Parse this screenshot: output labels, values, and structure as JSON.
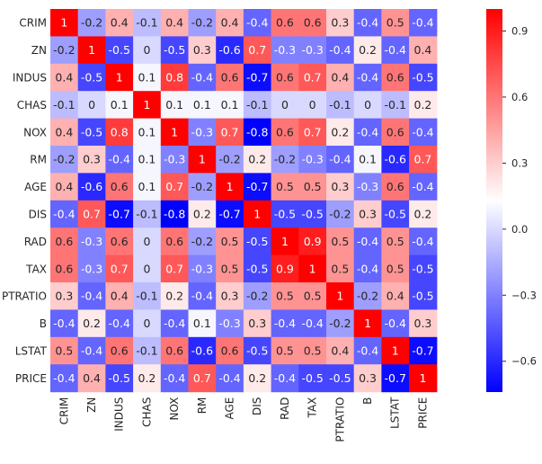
{
  "chart_data": {
    "type": "heatmap",
    "title": "",
    "xlabel": "",
    "ylabel": "",
    "labels": [
      "CRIM",
      "ZN",
      "INDUS",
      "CHAS",
      "NOX",
      "RM",
      "AGE",
      "DIS",
      "RAD",
      "TAX",
      "PTRATIO",
      "B",
      "LSTAT",
      "PRICE"
    ],
    "values": [
      [
        1,
        -0.2,
        0.4,
        -0.1,
        0.4,
        -0.2,
        0.4,
        -0.4,
        0.6,
        0.6,
        0.3,
        -0.4,
        0.5,
        -0.4
      ],
      [
        -0.2,
        1,
        -0.5,
        0,
        -0.5,
        0.3,
        -0.6,
        0.7,
        -0.3,
        -0.3,
        -0.4,
        0.2,
        -0.4,
        0.4
      ],
      [
        0.4,
        -0.5,
        1,
        0.1,
        0.8,
        -0.4,
        0.6,
        -0.7,
        0.6,
        0.7,
        0.4,
        -0.4,
        0.6,
        -0.5
      ],
      [
        -0.1,
        0,
        0.1,
        1,
        0.1,
        0.1,
        0.1,
        -0.1,
        0,
        0,
        -0.1,
        0,
        -0.1,
        0.2
      ],
      [
        0.4,
        -0.5,
        0.8,
        0.1,
        1,
        -0.3,
        0.7,
        -0.8,
        0.6,
        0.7,
        0.2,
        -0.4,
        0.6,
        -0.4
      ],
      [
        -0.2,
        0.3,
        -0.4,
        0.1,
        -0.3,
        1,
        -0.2,
        0.2,
        -0.2,
        -0.3,
        -0.4,
        0.1,
        -0.6,
        0.7
      ],
      [
        0.4,
        -0.6,
        0.6,
        0.1,
        0.7,
        -0.2,
        1,
        -0.7,
        0.5,
        0.5,
        0.3,
        -0.3,
        0.6,
        -0.4
      ],
      [
        -0.4,
        0.7,
        -0.7,
        -0.1,
        -0.8,
        0.2,
        -0.7,
        1,
        -0.5,
        -0.5,
        -0.2,
        0.3,
        -0.5,
        0.2
      ],
      [
        0.6,
        -0.3,
        0.6,
        0,
        0.6,
        -0.2,
        0.5,
        -0.5,
        1,
        0.9,
        0.5,
        -0.4,
        0.5,
        -0.4
      ],
      [
        0.6,
        -0.3,
        0.7,
        0,
        0.7,
        -0.3,
        0.5,
        -0.5,
        0.9,
        1,
        0.5,
        -0.4,
        0.5,
        -0.5
      ],
      [
        0.3,
        -0.4,
        0.4,
        -0.1,
        0.2,
        -0.4,
        0.3,
        -0.2,
        0.5,
        0.5,
        1,
        -0.2,
        0.4,
        -0.5
      ],
      [
        -0.4,
        0.2,
        -0.4,
        0,
        -0.4,
        0.1,
        -0.3,
        0.3,
        -0.4,
        -0.4,
        -0.2,
        1,
        -0.4,
        0.3
      ],
      [
        0.5,
        -0.4,
        0.6,
        -0.1,
        0.6,
        -0.6,
        0.6,
        -0.5,
        0.5,
        0.5,
        0.4,
        -0.4,
        1,
        -0.7
      ],
      [
        -0.4,
        0.4,
        -0.5,
        0.2,
        -0.4,
        0.7,
        -0.4,
        0.2,
        -0.4,
        -0.5,
        -0.5,
        0.3,
        -0.7,
        1
      ]
    ],
    "colormap": "bwr",
    "vmin": -0.74,
    "vmax": 1.0,
    "colorbar": {
      "ticks": [
        0.9,
        0.6,
        0.3,
        0.0,
        -0.3,
        -0.6
      ],
      "tick_labels": [
        "0.9",
        "0.6",
        "0.3",
        "0.0",
        "−0.3",
        "−0.6"
      ]
    },
    "colors": {
      "low": "#0000ff",
      "mid": "#ffffff",
      "high": "#ff0000"
    }
  }
}
